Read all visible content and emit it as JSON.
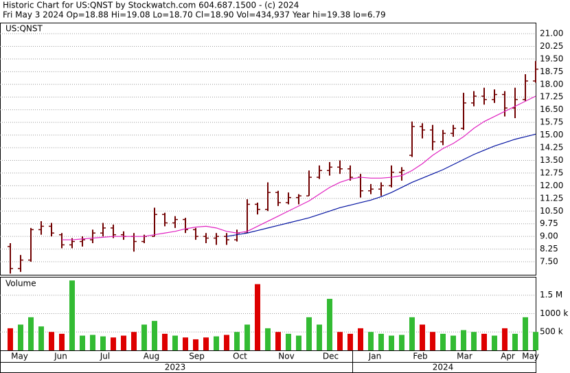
{
  "chart_data": {
    "type": "ohlc",
    "title": "Historic Chart for US:QNST by Stockwatch.com 604.687.1500 - (c) 2024",
    "subtitle": "Fri May  3 2024  Op=18.88  Hi=19.08  Lo=18.70  Cl=18.90  Vol=434,937  Year hi=19.38  lo=6.79",
    "symbol": "US:QNST",
    "bar_color": "#700000",
    "grid": true,
    "x": [
      0,
      1,
      2,
      3,
      4,
      5,
      6,
      7,
      8,
      9,
      10,
      11,
      12,
      13,
      14,
      15,
      16,
      17,
      18,
      19,
      20,
      21,
      22,
      23,
      24,
      25,
      26,
      27,
      28,
      29,
      30,
      31,
      32,
      33,
      34,
      35,
      36,
      37,
      38,
      39,
      40,
      41,
      42,
      43,
      44,
      45,
      46,
      47,
      48,
      49,
      50,
      51
    ],
    "xlim": [
      -1,
      51
    ],
    "xticks": [
      {
        "value": 0.9,
        "label": "May"
      },
      {
        "value": 4.9,
        "label": "Jun"
      },
      {
        "value": 9.2,
        "label": "Jul"
      },
      {
        "value": 13.7,
        "label": "Aug"
      },
      {
        "value": 18.1,
        "label": "Sep"
      },
      {
        "value": 22.3,
        "label": "Oct"
      },
      {
        "value": 26.8,
        "label": "Nov"
      },
      {
        "value": 31.1,
        "label": "Dec"
      },
      {
        "value": 35.4,
        "label": "Jan"
      },
      {
        "value": 39.8,
        "label": "Feb"
      },
      {
        "value": 44.1,
        "label": "Mar"
      },
      {
        "value": 48.3,
        "label": "Apr"
      },
      {
        "value": 50.5,
        "label": "May"
      }
    ],
    "years": [
      {
        "value": 16,
        "label": "2023"
      },
      {
        "value": 42,
        "label": "2024"
      }
    ],
    "ylim": [
      6.73,
      21.61
    ],
    "yticks": [
      {
        "value": 7.5,
        "label": "7.50"
      },
      {
        "value": 8.25,
        "label": "8.25"
      },
      {
        "value": 9,
        "label": "9.00"
      },
      {
        "value": 9.75,
        "label": "9.75"
      },
      {
        "value": 10.5,
        "label": "10.50"
      },
      {
        "value": 11.25,
        "label": "11.25"
      },
      {
        "value": 12,
        "label": "12.00"
      },
      {
        "value": 12.75,
        "label": "12.75"
      },
      {
        "value": 13.5,
        "label": "13.50"
      },
      {
        "value": 14.25,
        "label": "14.25"
      },
      {
        "value": 15,
        "label": "15.00"
      },
      {
        "value": 15.75,
        "label": "15.75"
      },
      {
        "value": 16.5,
        "label": "16.50"
      },
      {
        "value": 17.25,
        "label": "17.25"
      },
      {
        "value": 18,
        "label": "18.00"
      },
      {
        "value": 18.75,
        "label": "18.75"
      },
      {
        "value": 19.5,
        "label": "19.50"
      },
      {
        "value": 20.25,
        "label": "20.25"
      },
      {
        "value": 21,
        "label": "21.00"
      }
    ],
    "open": [
      8.4,
      7.1,
      7.6,
      9.4,
      9.6,
      9.1,
      8.5,
      8.7,
      8.8,
      9.2,
      9.5,
      9.1,
      9.0,
      8.7,
      9.0,
      10.3,
      9.8,
      10.0,
      9.4,
      9.0,
      8.9,
      9.0,
      8.8,
      9.2,
      10.9,
      10.6,
      11.6,
      11.0,
      11.3,
      11.4,
      12.5,
      12.9,
      13.1,
      13.0,
      12.5,
      11.7,
      11.8,
      12.0,
      12.8,
      13.8,
      15.5,
      15.3,
      14.6,
      15.1,
      15.4,
      16.9,
      17.3,
      17.1,
      17.4,
      16.6,
      17.1,
      18.2
    ],
    "high": [
      8.6,
      7.9,
      9.5,
      9.9,
      9.8,
      9.2,
      8.9,
      9.0,
      9.4,
      9.8,
      9.7,
      9.3,
      9.2,
      9.1,
      10.7,
      10.4,
      10.2,
      10.1,
      9.5,
      9.2,
      9.2,
      9.2,
      9.4,
      11.2,
      11.0,
      12.2,
      11.7,
      11.6,
      11.5,
      12.9,
      13.2,
      13.4,
      13.5,
      13.2,
      12.7,
      12.1,
      12.2,
      13.2,
      13.1,
      15.8,
      15.7,
      15.6,
      15.3,
      15.6,
      17.5,
      17.6,
      17.8,
      17.7,
      17.6,
      17.8,
      18.6,
      19.38
    ],
    "low": [
      6.8,
      6.9,
      7.5,
      9.1,
      9.0,
      8.3,
      8.3,
      8.4,
      8.6,
      9.0,
      8.9,
      8.8,
      8.1,
      8.6,
      9.0,
      9.6,
      9.5,
      9.2,
      8.8,
      8.6,
      8.5,
      8.5,
      8.7,
      9.2,
      10.3,
      10.5,
      10.8,
      10.9,
      10.9,
      11.4,
      12.4,
      12.6,
      12.7,
      12.3,
      11.3,
      11.5,
      11.4,
      11.9,
      12.3,
      13.7,
      14.8,
      14.1,
      14.4,
      14.9,
      15.3,
      16.7,
      16.8,
      16.9,
      16.1,
      16.0,
      17.0,
      18.1
    ],
    "close": [
      7.1,
      7.6,
      9.4,
      9.6,
      9.2,
      8.5,
      8.7,
      8.8,
      9.2,
      9.5,
      9.1,
      9.0,
      8.7,
      9.0,
      10.3,
      9.8,
      10.0,
      9.4,
      9.0,
      8.9,
      9.0,
      8.8,
      9.2,
      10.9,
      10.6,
      11.6,
      11.0,
      11.3,
      11.4,
      12.5,
      12.9,
      13.1,
      13.0,
      12.5,
      11.7,
      11.8,
      12.0,
      12.8,
      12.9,
      15.5,
      15.3,
      14.6,
      15.1,
      15.4,
      16.9,
      17.3,
      17.1,
      17.4,
      16.6,
      17.1,
      18.2,
      18.9
    ],
    "lines": [
      {
        "color": "#e020c0",
        "values": [
          null,
          null,
          null,
          null,
          null,
          8.8,
          8.8,
          8.85,
          8.9,
          8.95,
          9.0,
          9.0,
          9.0,
          9.0,
          9.1,
          9.2,
          9.3,
          9.45,
          9.55,
          9.6,
          9.5,
          9.3,
          9.2,
          9.3,
          9.6,
          9.9,
          10.2,
          10.5,
          10.8,
          11.1,
          11.5,
          11.9,
          12.2,
          12.4,
          12.5,
          12.45,
          12.45,
          12.5,
          12.6,
          12.9,
          13.3,
          13.8,
          14.2,
          14.5,
          14.9,
          15.4,
          15.8,
          16.1,
          16.4,
          16.7,
          17.0,
          17.3
        ]
      },
      {
        "color": "#0010a0",
        "values": [
          null,
          null,
          null,
          null,
          null,
          null,
          null,
          null,
          null,
          null,
          null,
          null,
          null,
          null,
          null,
          null,
          null,
          null,
          null,
          null,
          null,
          9.0,
          9.1,
          9.2,
          9.35,
          9.5,
          9.65,
          9.8,
          9.95,
          10.1,
          10.3,
          10.5,
          10.7,
          10.85,
          11.0,
          11.15,
          11.35,
          11.6,
          11.9,
          12.2,
          12.45,
          12.7,
          12.95,
          13.25,
          13.55,
          13.85,
          14.1,
          14.35,
          14.55,
          14.75,
          14.9,
          15.05
        ]
      }
    ],
    "volume": {
      "label": "Volume",
      "up_color": "#33bb33",
      "down_color": "#dd0000",
      "ylim": [
        0,
        1980000
      ],
      "yticks": [
        {
          "value": 500000,
          "label": "500 k"
        },
        {
          "value": 1000000,
          "label": "1000 k"
        },
        {
          "value": 1500000,
          "label": "1.5 M"
        }
      ],
      "values": [
        600000,
        700000,
        900000,
        650000,
        500000,
        450000,
        1900000,
        400000,
        420000,
        380000,
        350000,
        400000,
        500000,
        700000,
        800000,
        450000,
        400000,
        350000,
        300000,
        350000,
        380000,
        420000,
        500000,
        700000,
        1800000,
        600000,
        500000,
        450000,
        400000,
        900000,
        700000,
        1400000,
        500000,
        450000,
        600000,
        500000,
        450000,
        400000,
        420000,
        900000,
        700000,
        500000,
        450000,
        400000,
        550000,
        500000,
        450000,
        400000,
        600000,
        450000,
        900000,
        500000
      ]
    }
  }
}
